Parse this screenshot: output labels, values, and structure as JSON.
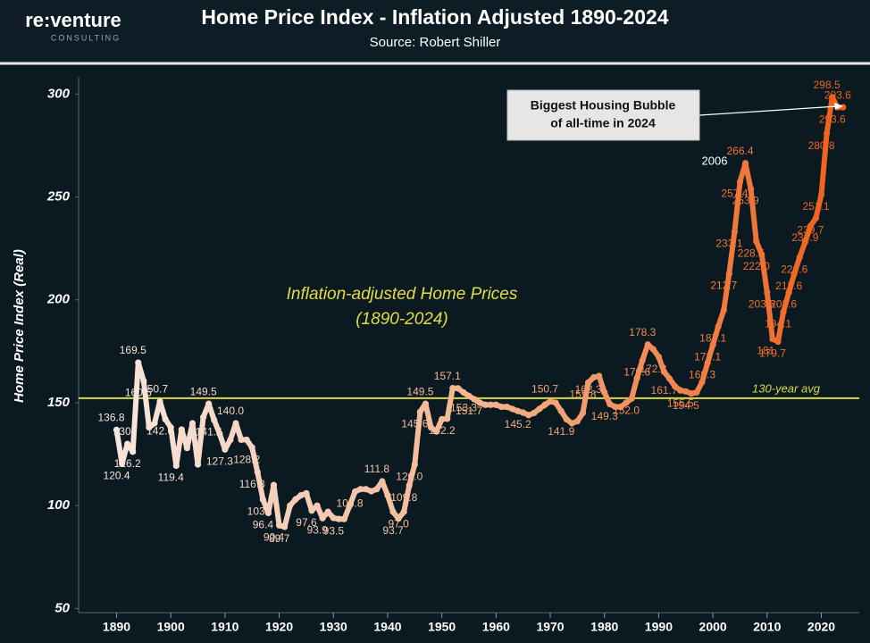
{
  "logo": {
    "name": "re:venture",
    "tagline": "CONSULTING"
  },
  "chart_data": {
    "type": "line",
    "title": "Home Price Index - Inflation Adjusted 1890-2024",
    "subtitle": "Source: Robert Shiller",
    "y_label": "Home Price Index (Real)",
    "ylim": [
      48,
      311
    ],
    "yticks": [
      50,
      100,
      150,
      200,
      250,
      300
    ],
    "xlim": [
      1883,
      2027
    ],
    "xticks": [
      1890,
      1900,
      1910,
      1920,
      1930,
      1940,
      1950,
      1960,
      1970,
      1980,
      1990,
      2000,
      2010,
      2020
    ],
    "colors": [
      "#f7e6de",
      "#f3b48e",
      "#ee5f1a"
    ],
    "series": [
      {
        "name": "Home Price Index",
        "x": [
          1890,
          1891,
          1892,
          1893,
          1894,
          1895,
          1896,
          1897,
          1898,
          1899,
          1900,
          1901,
          1902,
          1903,
          1904,
          1905,
          1906,
          1907,
          1908,
          1909,
          1910,
          1911,
          1912,
          1913,
          1914,
          1915,
          1916,
          1917,
          1918,
          1919,
          1920,
          1921,
          1922,
          1923,
          1924,
          1925,
          1926,
          1927,
          1928,
          1929,
          1930,
          1931,
          1932,
          1933,
          1934,
          1935,
          1936,
          1937,
          1938,
          1939,
          1940,
          1941,
          1942,
          1943,
          1944,
          1945,
          1946,
          1947,
          1948,
          1949,
          1950,
          1951,
          1952,
          1953,
          1954,
          1955,
          1956,
          1957,
          1958,
          1959,
          1960,
          1961,
          1962,
          1963,
          1964,
          1965,
          1966,
          1967,
          1968,
          1969,
          1970,
          1971,
          1972,
          1973,
          1974,
          1975,
          1976,
          1977,
          1978,
          1979,
          1980,
          1981,
          1982,
          1983,
          1984,
          1985,
          1986,
          1987,
          1988,
          1989,
          1990,
          1991,
          1992,
          1993,
          1994,
          1995,
          1996,
          1997,
          1998,
          1999,
          2000,
          2001,
          2002,
          2003,
          2004,
          2005,
          2006,
          2007,
          2008,
          2009,
          2010,
          2011,
          2012,
          2013,
          2014,
          2015,
          2016,
          2017,
          2018,
          2019,
          2020,
          2021,
          2022,
          2023,
          2024
        ],
        "values": [
          136.8,
          120.4,
          130.0,
          126.2,
          169.5,
          160.6,
          138.0,
          140.0,
          150.7,
          142.0,
          138.0,
          119.4,
          137.0,
          128.0,
          140.0,
          120.0,
          143.0,
          149.5,
          141.6,
          135.0,
          127.3,
          132.0,
          140.0,
          132.0,
          132.0,
          128.2,
          116.3,
          103.0,
          96.4,
          110.0,
          90.4,
          89.7,
          100.0,
          103.0,
          105.0,
          106.0,
          97.6,
          100.0,
          93.9,
          97.0,
          94.0,
          93.5,
          93.5,
          100.0,
          106.8,
          108.0,
          108.0,
          107.0,
          108.0,
          111.8,
          105.0,
          97.0,
          93.7,
          97.0,
          109.8,
          120.0,
          145.6,
          149.5,
          138.0,
          136.0,
          142.0,
          142.2,
          157.1,
          157.0,
          155.0,
          153.3,
          151.7,
          150.0,
          149.0,
          149.0,
          149.0,
          148.0,
          148.0,
          147.0,
          146.0,
          145.2,
          144.0,
          145.0,
          147.0,
          149.0,
          150.7,
          150.0,
          146.0,
          141.9,
          140.0,
          141.0,
          145.0,
          159.8,
          162.3,
          163.0,
          155.0,
          149.3,
          148.0,
          148.0,
          150.0,
          152.0,
          162.0,
          170.6,
          178.3,
          176.0,
          172.3,
          165.0,
          161.7,
          158.0,
          156.0,
          155.5,
          154.5,
          155.0,
          160.0,
          169.3,
          178.1,
          187.1,
          195.0,
          212.7,
          233.1,
          257.4,
          266.4,
          253.9,
          228.5,
          222.0,
          203.6,
          181.0,
          179.7,
          194.1,
          203.6,
          212.6,
          220.6,
          228.0,
          235.9,
          239.7,
          251.1,
          280.8,
          298.5,
          293.6,
          293.6
        ],
        "value_labels": [
          "136.8",
          "120.4",
          "130",
          "126.2",
          "169.5",
          "160.6",
          null,
          null,
          "150.7",
          "142.0",
          null,
          "119.4",
          null,
          null,
          null,
          null,
          null,
          "149.5",
          "141.6",
          null,
          "127.3",
          null,
          "140.0",
          null,
          null,
          "128.2",
          "116.3",
          "103.",
          "96.4",
          null,
          "90.4",
          "89.7",
          null,
          null,
          null,
          null,
          "97.6",
          null,
          "93.9",
          null,
          null,
          "93.5",
          null,
          null,
          "106.8",
          null,
          null,
          null,
          null,
          "111.8",
          null,
          null,
          "93.7",
          "97.0",
          "109.8",
          "120.0",
          "145.6",
          "149.5",
          null,
          null,
          null,
          "142.2",
          "157.1",
          null,
          null,
          "153.3",
          "151.7",
          null,
          null,
          null,
          null,
          null,
          null,
          null,
          null,
          "145.2",
          null,
          null,
          null,
          null,
          "150.7",
          null,
          null,
          "141.9",
          null,
          null,
          null,
          "159.8",
          "162.3",
          null,
          null,
          "149.3",
          null,
          null,
          null,
          "152.0",
          null,
          "170.6",
          "178.3",
          null,
          "172.3",
          null,
          "161.7",
          null,
          null,
          "155.5",
          "154.5",
          null,
          null,
          "169.3",
          "178.1",
          "187.1",
          null,
          "212.7",
          "233.1",
          "257.4",
          "266.4",
          "253.9",
          "228.5",
          "222.0",
          "203.6",
          "181.",
          "179.7",
          "194.1",
          "203.6",
          "212.6",
          "220.6",
          null,
          "235.9",
          "239.7",
          "251.1",
          "280.8",
          "298.5",
          "293.6",
          "293.6"
        ]
      }
    ],
    "average": {
      "value": 152.2,
      "label": "130-year avg",
      "color": "#d8d84a"
    },
    "annotations": {
      "center_text": [
        "Inflation-adjusted Home Prices",
        "(1890-2024)"
      ],
      "peak_year": "2006",
      "callout": [
        "Biggest Housing Bubble",
        "of all-time in 2024"
      ]
    }
  }
}
